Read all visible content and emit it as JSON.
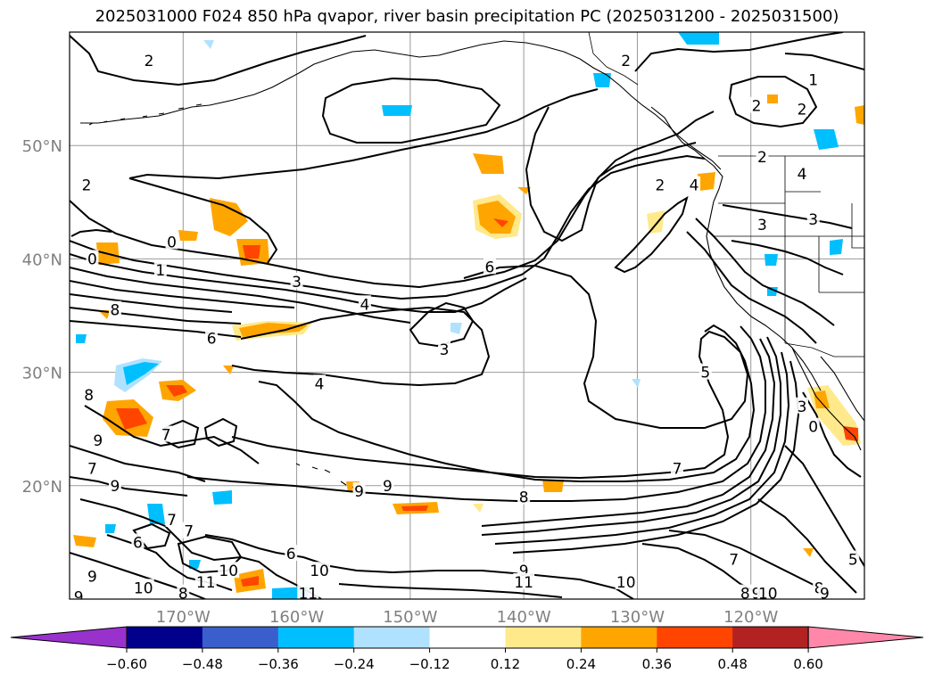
{
  "title": "2025031000 F024 850 hPa qvapor, river basin precipitation PC (2025031200 - 2025031500)",
  "map": {
    "lon_range": [
      -180,
      -110
    ],
    "lat_range": [
      10,
      60
    ],
    "lat_ticks": [
      {
        "value": 50,
        "label": "50°N"
      },
      {
        "value": 40,
        "label": "40°N"
      },
      {
        "value": 30,
        "label": "30°N"
      },
      {
        "value": 20,
        "label": "20°N"
      }
    ],
    "lon_ticks": [
      {
        "value": -170,
        "label": "170°W"
      },
      {
        "value": -160,
        "label": "160°W"
      },
      {
        "value": -150,
        "label": "150°W"
      },
      {
        "value": -140,
        "label": "140°W"
      },
      {
        "value": -130,
        "label": "130°W"
      },
      {
        "value": -120,
        "label": "120°W"
      }
    ],
    "tick_label_color": "#808080",
    "grid": true,
    "contour_labels": [
      {
        "t": "2",
        "lon": -173.0,
        "lat": 57.5
      },
      {
        "t": "2",
        "lon": -131.0,
        "lat": 57.5
      },
      {
        "t": "1",
        "lon": -114.5,
        "lat": 55.8
      },
      {
        "t": "2",
        "lon": -119.5,
        "lat": 53.5
      },
      {
        "t": "2",
        "lon": -115.5,
        "lat": 53.2
      },
      {
        "t": "2",
        "lon": -119.0,
        "lat": 49.0
      },
      {
        "t": "4",
        "lon": -115.5,
        "lat": 47.5
      },
      {
        "t": "2",
        "lon": -128.0,
        "lat": 46.5
      },
      {
        "t": "4",
        "lon": -125.0,
        "lat": 46.5
      },
      {
        "t": "3",
        "lon": -119.0,
        "lat": 43.0
      },
      {
        "t": "3",
        "lon": -114.5,
        "lat": 43.5
      },
      {
        "t": "2",
        "lon": -178.5,
        "lat": 46.5
      },
      {
        "t": "0",
        "lon": -171.0,
        "lat": 41.5
      },
      {
        "t": "0",
        "lon": -178.0,
        "lat": 40.0
      },
      {
        "t": "1",
        "lon": -172.0,
        "lat": 39.0
      },
      {
        "t": "3",
        "lon": -160.0,
        "lat": 38.0
      },
      {
        "t": "6",
        "lon": -143.0,
        "lat": 39.3
      },
      {
        "t": "4",
        "lon": -154.0,
        "lat": 36.0
      },
      {
        "t": "8",
        "lon": -176.0,
        "lat": 35.5
      },
      {
        "t": "6",
        "lon": -167.5,
        "lat": 33.0
      },
      {
        "t": "3",
        "lon": -147.0,
        "lat": 32.0
      },
      {
        "t": "4",
        "lon": -158.0,
        "lat": 29.0
      },
      {
        "t": "5",
        "lon": -124.0,
        "lat": 30.0
      },
      {
        "t": "8",
        "lon": -178.3,
        "lat": 28.0
      },
      {
        "t": "7",
        "lon": -171.5,
        "lat": 24.5
      },
      {
        "t": "9",
        "lon": -177.5,
        "lat": 24.0
      },
      {
        "t": "7",
        "lon": -178.0,
        "lat": 21.5
      },
      {
        "t": "9",
        "lon": -176.0,
        "lat": 20.0
      },
      {
        "t": "9",
        "lon": -152.0,
        "lat": 20.0
      },
      {
        "t": "9",
        "lon": -154.5,
        "lat": 19.5
      },
      {
        "t": "8",
        "lon": -140.0,
        "lat": 19.0
      },
      {
        "t": "7",
        "lon": -126.5,
        "lat": 21.5
      },
      {
        "t": "3",
        "lon": -115.5,
        "lat": 27.0
      },
      {
        "t": "0",
        "lon": -114.5,
        "lat": 25.2
      },
      {
        "t": "7",
        "lon": -171.0,
        "lat": 17.0
      },
      {
        "t": "7",
        "lon": -169.5,
        "lat": 16.0
      },
      {
        "t": "6",
        "lon": -174.0,
        "lat": 15.0
      },
      {
        "t": "6",
        "lon": -160.5,
        "lat": 14.0
      },
      {
        "t": "10",
        "lon": -166.0,
        "lat": 12.5
      },
      {
        "t": "10",
        "lon": -158.0,
        "lat": 12.5
      },
      {
        "t": "11",
        "lon": -168.0,
        "lat": 11.5
      },
      {
        "t": "9",
        "lon": -178.0,
        "lat": 12.0
      },
      {
        "t": "9",
        "lon": -140.0,
        "lat": 12.5
      },
      {
        "t": "11",
        "lon": -140.0,
        "lat": 11.5
      },
      {
        "t": "10",
        "lon": -173.5,
        "lat": 11.0
      },
      {
        "t": "8",
        "lon": -170.0,
        "lat": 10.5
      },
      {
        "t": "11",
        "lon": -159.0,
        "lat": 10.5
      },
      {
        "t": "9",
        "lon": -179.2,
        "lat": 10.2
      },
      {
        "t": "10",
        "lon": -131.0,
        "lat": 11.5
      },
      {
        "t": "8",
        "lon": -120.5,
        "lat": 10.5
      },
      {
        "t": "9",
        "lon": -119.5,
        "lat": 10.5
      },
      {
        "t": "10",
        "lon": -118.5,
        "lat": 10.5
      },
      {
        "t": "8",
        "lon": -114.0,
        "lat": 11.0
      },
      {
        "t": "9",
        "lon": -113.5,
        "lat": 10.5
      },
      {
        "t": "7",
        "lon": -121.5,
        "lat": 13.5
      },
      {
        "t": "5",
        "lon": -111.0,
        "lat": 13.5
      }
    ]
  },
  "colorbar": {
    "tick_labels": [
      "−0.60",
      "−0.48",
      "−0.36",
      "−0.24",
      "−0.12",
      "0.12",
      "0.24",
      "0.36",
      "0.48",
      "0.60"
    ],
    "colors": [
      "#9932cc",
      "#00008b",
      "#3a5fcd",
      "#00bfff",
      "#b0e2ff",
      "#ffffff",
      "#ffe98a",
      "#ffa500",
      "#ff4500",
      "#b22222",
      "#ff88aa"
    ]
  }
}
